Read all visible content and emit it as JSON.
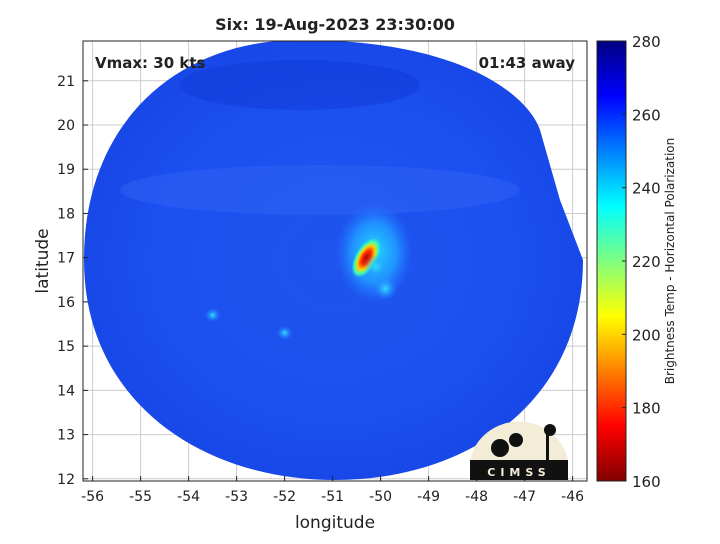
{
  "chart_data": {
    "type": "heatmap",
    "title": "Six: 19-Aug-2023 23:30:00",
    "xlabel": "longitude",
    "ylabel": "latitude",
    "xlim": [
      -56.2,
      -45.7
    ],
    "ylim": [
      11.95,
      21.9
    ],
    "xticks": [
      -56,
      -55,
      -54,
      -53,
      -52,
      -51,
      -50,
      -49,
      -48,
      -47,
      -46
    ],
    "yticks": [
      12,
      13,
      14,
      15,
      16,
      17,
      18,
      19,
      20,
      21
    ],
    "grid": true,
    "colormap": "jet",
    "colorbar": {
      "label": "Brightness Temp - Horizontal Polarization",
      "range": [
        160,
        280
      ],
      "ticks": [
        160,
        180,
        200,
        220,
        240,
        260,
        280
      ]
    },
    "annotations": {
      "vmax": "Vmax: 30 kts",
      "time_offset": "01:43 away"
    },
    "features": [
      {
        "lon": -50.3,
        "lat": 17.0,
        "value": 175
      },
      {
        "lon": -50.1,
        "lat": 16.8,
        "value": 215
      },
      {
        "lon": -49.9,
        "lat": 16.3,
        "value": 235
      },
      {
        "lon": -53.5,
        "lat": 15.7,
        "value": 240
      },
      {
        "lon": -52.0,
        "lat": 15.3,
        "value": 245
      }
    ],
    "background_value": 262
  },
  "logo": "CIMSS"
}
